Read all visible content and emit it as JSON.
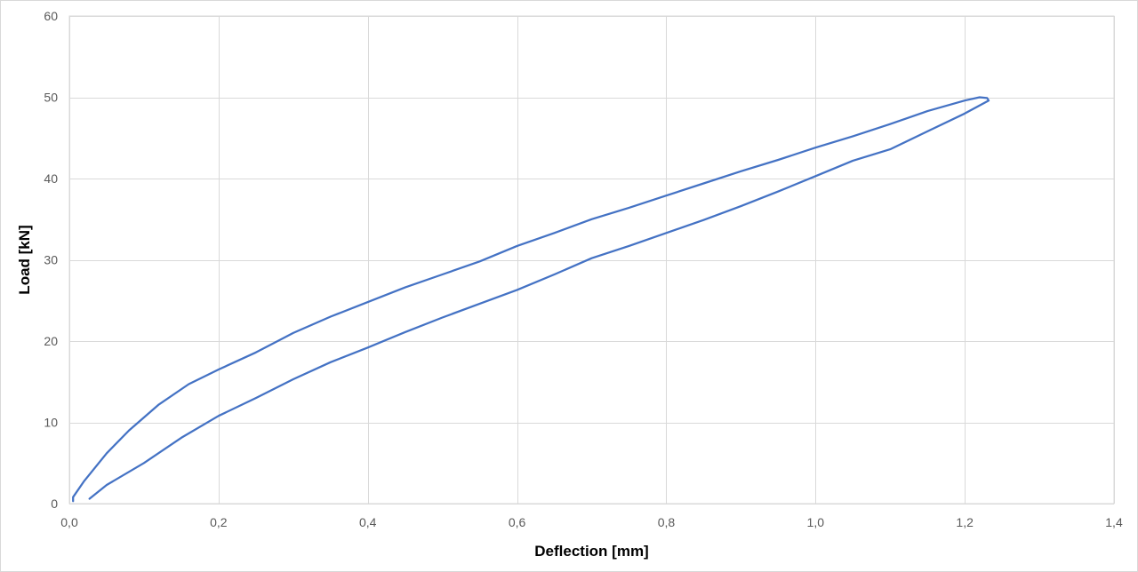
{
  "chart_data": {
    "type": "line",
    "title": "",
    "xlabel": "Deflection [mm]",
    "ylabel": "Load [kN]",
    "xlim": [
      0,
      1.4
    ],
    "ylim": [
      0,
      60
    ],
    "x_ticks": [
      "0,0",
      "0,2",
      "0,4",
      "0,6",
      "0,8",
      "1,0",
      "1,2",
      "1,4"
    ],
    "y_ticks": [
      "0",
      "10",
      "20",
      "30",
      "40",
      "50",
      "60"
    ],
    "x_tick_values": [
      0,
      0.2,
      0.4,
      0.6,
      0.8,
      1.0,
      1.2,
      1.4
    ],
    "y_tick_values": [
      0,
      10,
      20,
      30,
      40,
      50,
      60
    ],
    "grid": true,
    "legend": "none",
    "line_color": "#4472c4",
    "series": [
      {
        "points": [
          [
            0.005,
            0.3
          ],
          [
            0.005,
            0.8
          ],
          [
            0.02,
            2.8
          ],
          [
            0.05,
            6.2
          ],
          [
            0.08,
            9.0
          ],
          [
            0.12,
            12.2
          ],
          [
            0.16,
            14.7
          ],
          [
            0.2,
            16.5
          ],
          [
            0.25,
            18.6
          ],
          [
            0.3,
            21.0
          ],
          [
            0.35,
            23.0
          ],
          [
            0.4,
            24.8
          ],
          [
            0.45,
            26.6
          ],
          [
            0.5,
            28.2
          ],
          [
            0.55,
            29.8
          ],
          [
            0.6,
            31.7
          ],
          [
            0.65,
            33.3
          ],
          [
            0.7,
            35.0
          ],
          [
            0.75,
            36.4
          ],
          [
            0.8,
            37.9
          ],
          [
            0.85,
            39.4
          ],
          [
            0.9,
            40.9
          ],
          [
            0.95,
            42.3
          ],
          [
            1.0,
            43.8
          ],
          [
            1.05,
            45.2
          ],
          [
            1.1,
            46.7
          ],
          [
            1.15,
            48.3
          ],
          [
            1.2,
            49.6
          ],
          [
            1.22,
            50.0
          ],
          [
            1.23,
            49.9
          ],
          [
            1.232,
            49.6
          ],
          [
            1.2,
            48.0
          ],
          [
            1.15,
            45.8
          ],
          [
            1.1,
            43.6
          ],
          [
            1.05,
            42.2
          ],
          [
            1.0,
            40.3
          ],
          [
            0.95,
            38.4
          ],
          [
            0.9,
            36.6
          ],
          [
            0.85,
            34.9
          ],
          [
            0.8,
            33.3
          ],
          [
            0.75,
            31.7
          ],
          [
            0.7,
            30.2
          ],
          [
            0.65,
            28.2
          ],
          [
            0.6,
            26.3
          ],
          [
            0.55,
            24.6
          ],
          [
            0.5,
            22.9
          ],
          [
            0.45,
            21.1
          ],
          [
            0.4,
            19.2
          ],
          [
            0.35,
            17.4
          ],
          [
            0.3,
            15.3
          ],
          [
            0.25,
            13.0
          ],
          [
            0.2,
            10.8
          ],
          [
            0.15,
            8.1
          ],
          [
            0.1,
            5.0
          ],
          [
            0.05,
            2.3
          ],
          [
            0.027,
            0.6
          ]
        ]
      }
    ]
  }
}
